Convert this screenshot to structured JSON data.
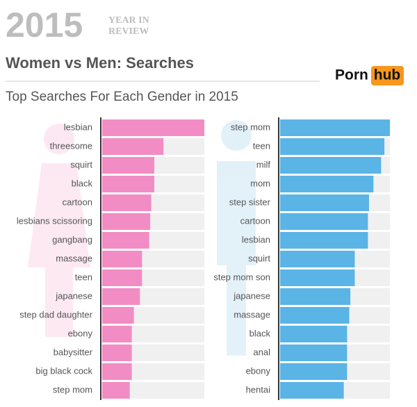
{
  "header": {
    "year": "2015",
    "badge_line1": "YEAR IN",
    "badge_line2": "REVIEW",
    "title": "Women vs Men: Searches",
    "subtitle": "Top Searches For Each Gender in 2015",
    "logo_left": "Porn",
    "logo_right": "hub"
  },
  "chart_data": [
    {
      "type": "bar",
      "orientation": "horizontal",
      "color": "#f28cc4",
      "track_color": "#f0f0f0",
      "xlim": [
        0,
        100
      ],
      "categories": [
        "lesbian",
        "threesome",
        "squirt",
        "black",
        "cartoon",
        "lesbians scissoring",
        "gangbang",
        "massage",
        "teen",
        "japanese",
        "step dad daughter",
        "ebony",
        "babysitter",
        "big black cock",
        "step mom"
      ],
      "values": [
        100,
        60,
        51,
        51,
        48,
        47,
        46,
        39,
        39,
        37,
        31,
        29,
        29,
        29,
        27
      ]
    },
    {
      "type": "bar",
      "orientation": "horizontal",
      "color": "#5ab4e5",
      "track_color": "#f0f0f0",
      "xlim": [
        0,
        100
      ],
      "categories": [
        "step mom",
        "teen",
        "milf",
        "mom",
        "step sister",
        "cartoon",
        "lesbian",
        "squirt",
        "step mom son",
        "japanese",
        "massage",
        "black",
        "anal",
        "ebony",
        "hentai"
      ],
      "values": [
        100,
        95,
        92,
        85,
        81,
        80,
        80,
        68,
        68,
        64,
        63,
        61,
        61,
        61,
        58
      ]
    }
  ]
}
